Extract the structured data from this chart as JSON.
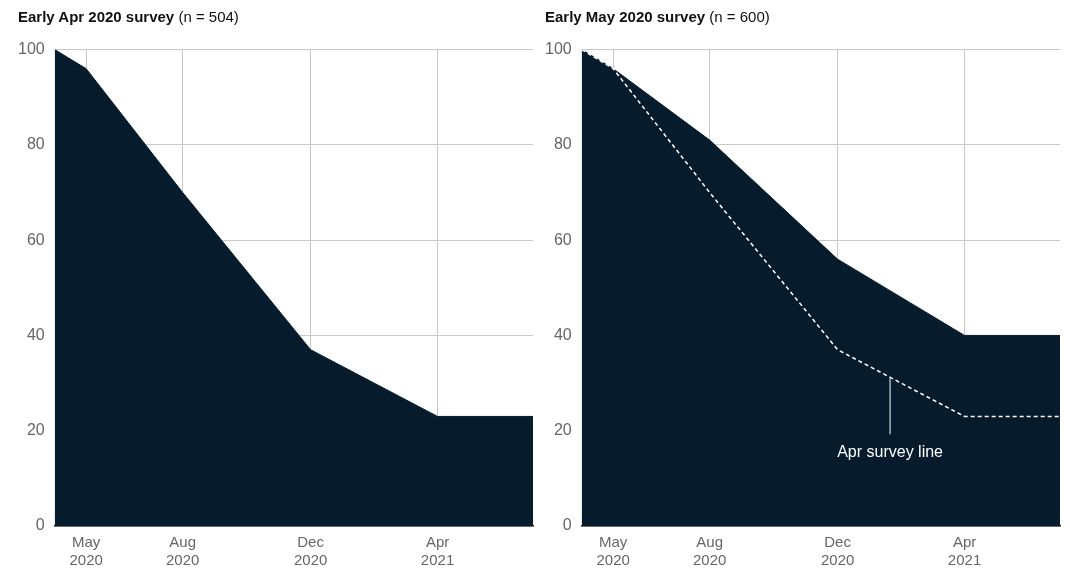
{
  "chart_data": [
    {
      "type": "area",
      "title": "Early Apr 2020 survey",
      "subtitle": "(n = 504)",
      "x": [
        "2020-04-01",
        "2020-05-01",
        "2020-08-01",
        "2020-12-01",
        "2021-04-01",
        "2021-07-01"
      ],
      "series": [
        {
          "color": "#061c2c",
          "values": [
            100,
            96,
            70,
            37,
            23,
            23
          ]
        }
      ],
      "xlim": [
        "2020-04-01",
        "2021-07-01"
      ],
      "xticks": [
        {
          "value": "2020-05-01",
          "label": "May 2020"
        },
        {
          "value": "2020-08-01",
          "label": "Aug 2020"
        },
        {
          "value": "2020-12-01",
          "label": "Dec 2020"
        },
        {
          "value": "2021-04-01",
          "label": "Apr 2021"
        }
      ],
      "ylim": [
        0,
        100
      ],
      "yticks": [
        0,
        20,
        40,
        60,
        80,
        100
      ],
      "grid": true,
      "marker": "none"
    },
    {
      "type": "area",
      "title": "Early May 2020 survey",
      "subtitle": "(n = 600)",
      "x": [
        "2020-04-01",
        "2020-05-01",
        "2020-08-01",
        "2020-12-01",
        "2021-04-01",
        "2021-07-01"
      ],
      "series": [
        {
          "color": "#061c2c",
          "values": [
            100,
            96,
            81,
            56,
            40,
            40
          ]
        },
        {
          "type": "line",
          "color": "#ffffff",
          "line_style": "dashed",
          "values": [
            100,
            96,
            70,
            37,
            23,
            23
          ]
        }
      ],
      "xlim": [
        "2020-04-01",
        "2021-07-01"
      ],
      "xticks": [
        {
          "value": "2020-05-01",
          "label": "May 2020"
        },
        {
          "value": "2020-08-01",
          "label": "Aug 2020"
        },
        {
          "value": "2020-12-01",
          "label": "Dec 2020"
        },
        {
          "value": "2021-04-01",
          "label": "Apr 2021"
        }
      ],
      "ylim": [
        0,
        100
      ],
      "yticks": [
        0,
        20,
        40,
        60,
        80,
        100
      ],
      "grid": true,
      "marker": "none",
      "annotations": [
        {
          "text": "Apr survey line",
          "x": "2021-01-20",
          "y": 31
        }
      ]
    }
  ]
}
